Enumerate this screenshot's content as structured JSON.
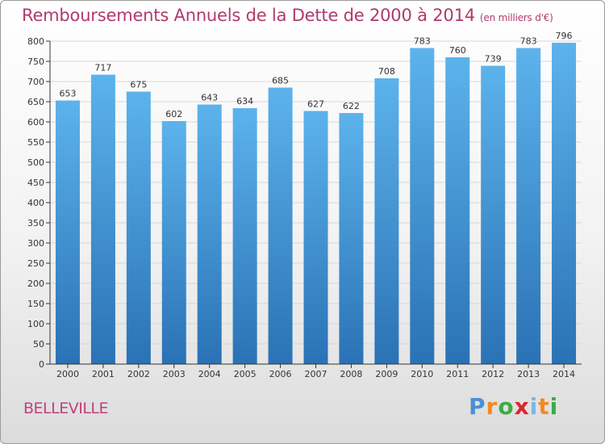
{
  "header": {
    "title": "Remboursements Annuels de la Dette de 2000 à 2014",
    "unit": "(en milliers d'€)"
  },
  "footer": {
    "commune": "BELLEVILLE",
    "logo_letters": [
      "P",
      "r",
      "o",
      "x",
      "i",
      "t",
      "i"
    ],
    "logo_colors": [
      "#4a8fd6",
      "#f08a24",
      "#3cab4a",
      "#d9262c",
      "#7ab8e6",
      "#f08a24",
      "#3cab4a"
    ]
  },
  "colors": {
    "bar_top": "#5cb3ec",
    "bar_bottom": "#2a72b5",
    "axis": "#333333",
    "grid": "#d7d7d7",
    "label": "#333333"
  },
  "chart_data": {
    "type": "bar",
    "title": "Remboursements Annuels de la Dette de 2000 à 2014",
    "xlabel": "",
    "ylabel": "(en milliers d'€)",
    "categories": [
      "2000",
      "2001",
      "2002",
      "2003",
      "2004",
      "2005",
      "2006",
      "2007",
      "2008",
      "2009",
      "2010",
      "2011",
      "2012",
      "2013",
      "2014"
    ],
    "values": [
      653,
      717,
      675,
      602,
      643,
      634,
      685,
      627,
      622,
      708,
      783,
      760,
      739,
      783,
      796
    ],
    "ylim": [
      0,
      800
    ],
    "ytick_step": 50,
    "grid": true
  }
}
